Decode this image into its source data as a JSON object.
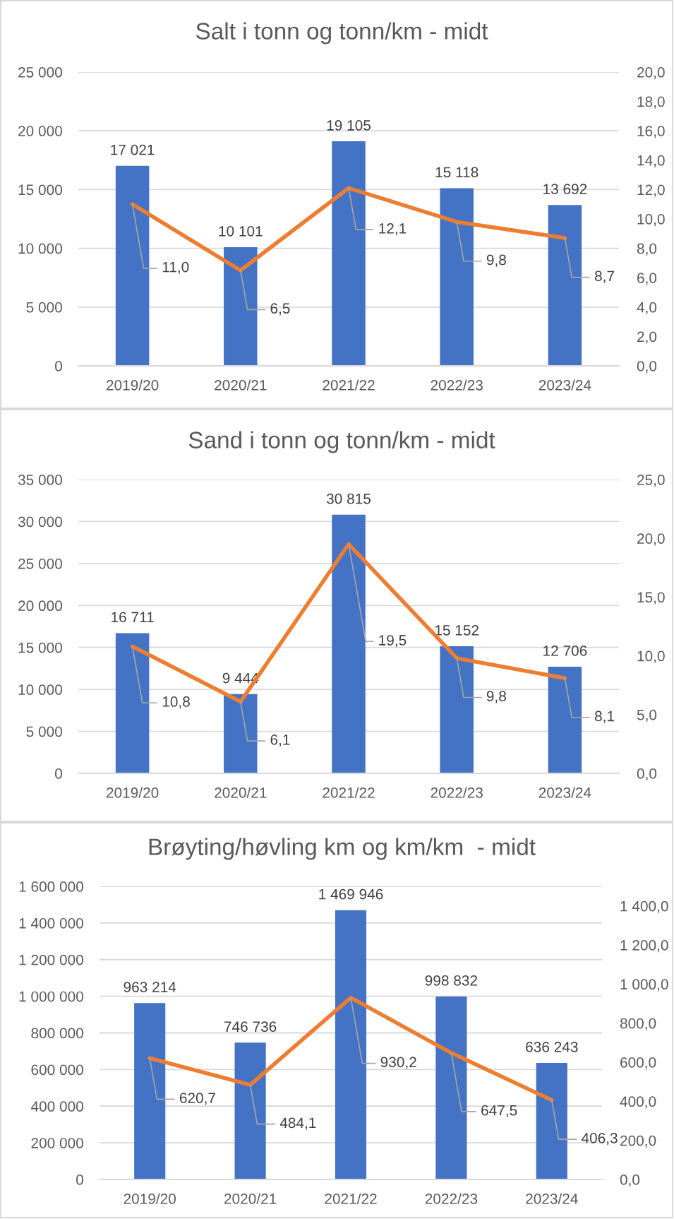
{
  "chart_data": [
    {
      "type": "bar",
      "title": "Salt i tonn og tonn/km - midt",
      "categories": [
        "2019/20",
        "2020/21",
        "2021/22",
        "2022/23",
        "2023/24"
      ],
      "series": [
        {
          "color": "#4472c4",
          "values": [
            17021,
            10101,
            19105,
            15118,
            13692
          ],
          "value_labels": [
            "17 021",
            "10 101",
            "19 105",
            "15 118",
            "13 692"
          ]
        },
        {
          "type": "line",
          "axis": "y2",
          "color": "#ed7d31",
          "values": [
            11.0,
            6.5,
            12.1,
            9.8,
            8.7
          ],
          "value_labels": [
            "11,0",
            "6,5",
            "12,1",
            "9,8",
            "8,7"
          ]
        }
      ],
      "ylim": [
        0,
        25000
      ],
      "yticks": [
        0,
        {
          "value": 5000,
          "label": "5 000"
        },
        {
          "value": 10000,
          "label": "10 000"
        },
        {
          "value": 15000,
          "label": "15 000"
        },
        {
          "value": 20000,
          "label": "20 000"
        },
        {
          "value": 25000,
          "label": "25 000"
        }
      ],
      "y2lim": [
        0,
        20
      ],
      "y2ticks": [
        {
          "value": 0,
          "label": "0,0"
        },
        {
          "value": 2,
          "label": "2,0"
        },
        {
          "value": 4,
          "label": "4,0"
        },
        {
          "value": 6,
          "label": "6,0"
        },
        {
          "value": 8,
          "label": "8,0"
        },
        {
          "value": 10,
          "label": "10,0"
        },
        {
          "value": 12,
          "label": "12,0"
        },
        {
          "value": 14,
          "label": "14,0"
        },
        {
          "value": 16,
          "label": "16,0"
        },
        {
          "value": 18,
          "label": "18,0"
        },
        {
          "value": 20,
          "label": "20,0"
        }
      ],
      "grid": "y"
    },
    {
      "type": "bar",
      "title": "Sand i tonn og tonn/km - midt",
      "categories": [
        "2019/20",
        "2020/21",
        "2021/22",
        "2022/23",
        "2023/24"
      ],
      "series": [
        {
          "color": "#4472c4",
          "values": [
            16711,
            9444,
            30815,
            15152,
            12706
          ],
          "value_labels": [
            "16 711",
            "9 444",
            "30 815",
            "15 152",
            "12 706"
          ]
        },
        {
          "type": "line",
          "axis": "y2",
          "color": "#ed7d31",
          "values": [
            10.8,
            6.1,
            19.5,
            9.8,
            8.1
          ],
          "value_labels": [
            "10,8",
            "6,1",
            "19,5",
            "9,8",
            "8,1"
          ]
        }
      ],
      "ylim": [
        0,
        35000
      ],
      "yticks": [
        0,
        {
          "value": 5000,
          "label": "5 000"
        },
        {
          "value": 10000,
          "label": "10 000"
        },
        {
          "value": 15000,
          "label": "15 000"
        },
        {
          "value": 20000,
          "label": "20 000"
        },
        {
          "value": 25000,
          "label": "25 000"
        },
        {
          "value": 30000,
          "label": "30 000"
        },
        {
          "value": 35000,
          "label": "35 000"
        }
      ],
      "y2lim": [
        0,
        25
      ],
      "y2ticks": [
        {
          "value": 0,
          "label": "0,0"
        },
        {
          "value": 5,
          "label": "5,0"
        },
        {
          "value": 10,
          "label": "10,0"
        },
        {
          "value": 15,
          "label": "15,0"
        },
        {
          "value": 20,
          "label": "20,0"
        },
        {
          "value": 25,
          "label": "25,0"
        }
      ],
      "grid": "y"
    },
    {
      "type": "bar",
      "title": "Brøyting/høvling km og km/km  - midt",
      "categories": [
        "2019/20",
        "2020/21",
        "2021/22",
        "2022/23",
        "2023/24"
      ],
      "series": [
        {
          "color": "#4472c4",
          "values": [
            963214,
            746736,
            1469946,
            998832,
            636243
          ],
          "value_labels": [
            "963 214",
            "746 736",
            "1 469 946",
            "998 832",
            "636 243"
          ]
        },
        {
          "type": "line",
          "axis": "y2",
          "color": "#ed7d31",
          "values": [
            620.7,
            484.1,
            930.2,
            647.5,
            406.3
          ],
          "value_labels": [
            "620,7",
            "484,1",
            "930,2",
            "647,5",
            "406,3"
          ]
        }
      ],
      "ylim": [
        0,
        1600000
      ],
      "yticks": [
        0,
        {
          "value": 200000,
          "label": "200 000"
        },
        {
          "value": 400000,
          "label": "400 000"
        },
        {
          "value": 600000,
          "label": "600 000"
        },
        {
          "value": 800000,
          "label": "800 000"
        },
        {
          "value": 1000000,
          "label": "1 000 000"
        },
        {
          "value": 1200000,
          "label": "1 200 000"
        },
        {
          "value": 1400000,
          "label": "1 400 000"
        },
        {
          "value": 1600000,
          "label": "1 600 000"
        }
      ],
      "y2lim": [
        0,
        1500
      ],
      "y2ticks": [
        {
          "value": 0,
          "label": "0,0"
        },
        {
          "value": 200,
          "label": "200,0"
        },
        {
          "value": 400,
          "label": "400,0"
        },
        {
          "value": 600,
          "label": "600,0"
        },
        {
          "value": 800,
          "label": "800,0"
        },
        {
          "value": 1000,
          "label": "1 000,0"
        },
        {
          "value": 1200,
          "label": "1 200,0"
        },
        {
          "value": 1400,
          "label": "1 400,0"
        }
      ],
      "grid": "y"
    }
  ]
}
